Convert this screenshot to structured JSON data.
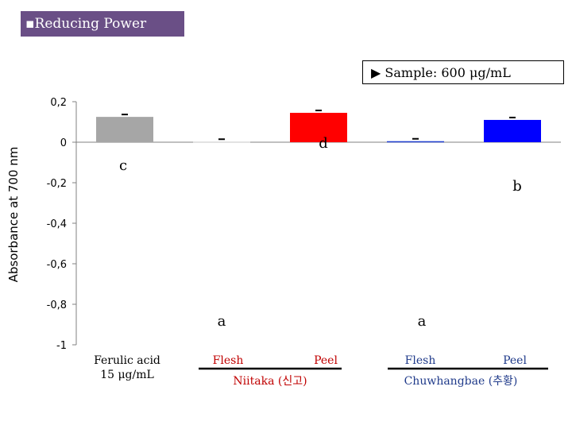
{
  "header": {
    "title": "▪Reducing Power"
  },
  "sample_note": "▶ Sample: 600 μg/mL",
  "chart_data": {
    "type": "bar",
    "ylabel": "Absorbance at 700 nm",
    "ylim": [
      -1,
      0.2
    ],
    "yticks": [
      0.2,
      0,
      -0.2,
      -0.4,
      -0.6,
      -0.8,
      -1
    ],
    "ytick_labels": [
      "0,2",
      "0",
      "-0,2",
      "-0,4",
      "-0,6",
      "-0,8",
      "-1"
    ],
    "bars": [
      {
        "category": "Ferulic acid 15 μg/mL",
        "value": 0.125,
        "color": "#a6a6a6",
        "significance": "c"
      },
      {
        "category": "Niitaka Flesh",
        "value": 0.003,
        "color": "#d9d9d9",
        "significance": "a"
      },
      {
        "category": "Niitaka Peel",
        "value": 0.145,
        "color": "#ff0000",
        "significance": "d"
      },
      {
        "category": "Chuwhangbae Flesh",
        "value": 0.005,
        "color": "#1f3fd0",
        "significance": "a"
      },
      {
        "category": "Chuwhangbae Peel",
        "value": 0.11,
        "color": "#0000ff",
        "significance": "b"
      }
    ],
    "x_labels": {
      "ferulic_line1": "Ferulic acid",
      "ferulic_line2": "15 μg/mL",
      "niitaka_flesh": "Flesh",
      "niitaka_peel": "Peel",
      "niitaka_group": "Niitaka (신고)",
      "chuwhangbae_flesh": "Flesh",
      "chuwhangbae_peel": "Peel",
      "chuwhangbae_group": "Chuwhangbae (추황)"
    },
    "colors": {
      "niitaka_label": "#c00000",
      "chuwhangbae_label": "#1f3a8a"
    }
  }
}
